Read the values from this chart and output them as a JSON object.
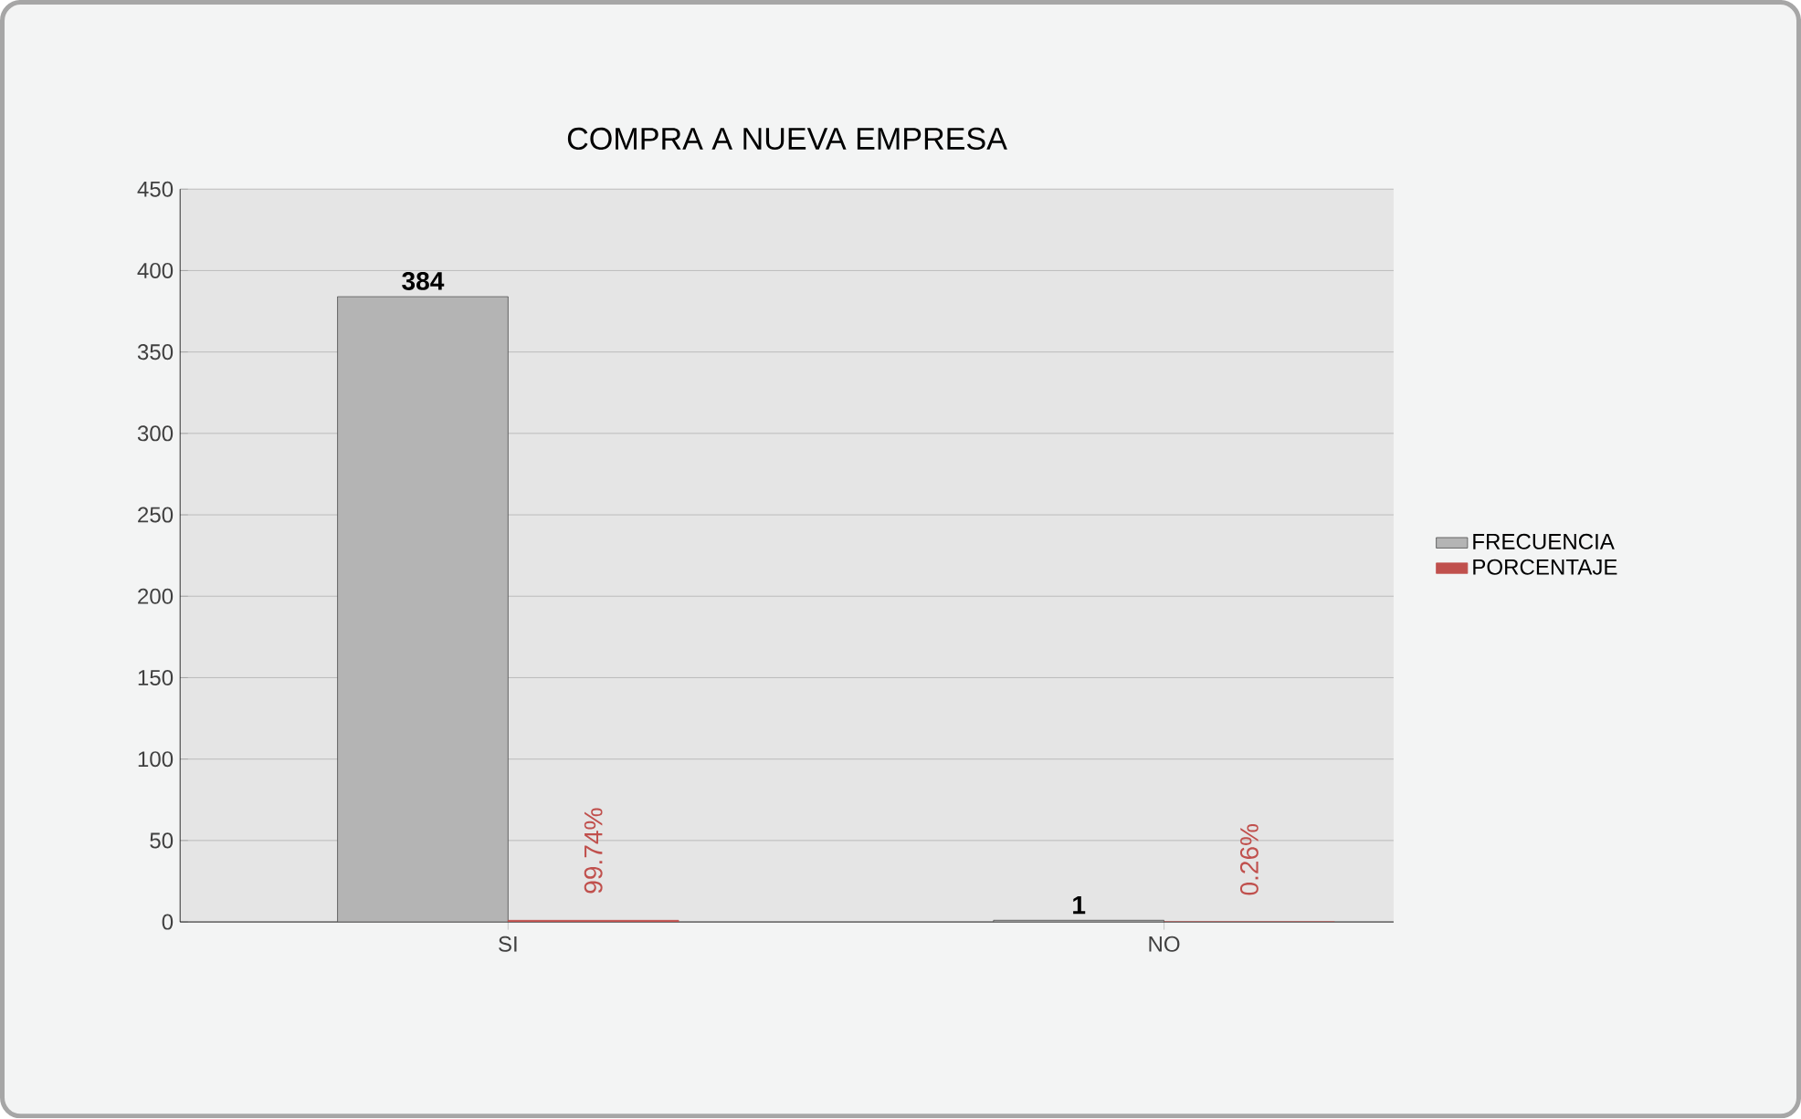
{
  "chart_data": {
    "type": "bar",
    "title": "COMPRA A NUEVA EMPRESA",
    "categories": [
      "SI",
      "NO"
    ],
    "series": [
      {
        "name": "FRECUENCIA",
        "color": "#b4b4b4",
        "values": [
          384,
          1
        ],
        "value_labels": [
          "384",
          "1"
        ]
      },
      {
        "name": "PORCENTAJE",
        "color": "#c0504d",
        "values": [
          0.9974,
          0.0026
        ],
        "value_labels": [
          "99.74%",
          "0.26%"
        ]
      }
    ],
    "ylim": [
      0,
      450
    ],
    "yticks": [
      0,
      50,
      100,
      150,
      200,
      250,
      300,
      350,
      400,
      450
    ],
    "grid": "y",
    "legend": "right"
  }
}
